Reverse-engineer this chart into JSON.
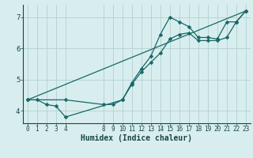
{
  "xlabel": "Humidex (Indice chaleur)",
  "bg_color": "#d8eeee",
  "grid_color": "#b8d4d4",
  "line_color": "#1a6666",
  "ylim": [
    3.6,
    7.4
  ],
  "xlim": [
    -0.5,
    23.5
  ],
  "yticks": [
    4,
    5,
    6,
    7
  ],
  "xticks": [
    0,
    1,
    2,
    3,
    4,
    8,
    9,
    10,
    11,
    12,
    13,
    14,
    15,
    16,
    17,
    18,
    19,
    20,
    21,
    22,
    23
  ],
  "line1_x": [
    0,
    1,
    2,
    3,
    4,
    10,
    11,
    12,
    13,
    14,
    15,
    16,
    17,
    18,
    19,
    20,
    21,
    22,
    23
  ],
  "line1_y": [
    4.35,
    4.35,
    4.2,
    4.15,
    3.8,
    4.35,
    4.9,
    5.35,
    5.75,
    6.45,
    7.0,
    6.85,
    6.7,
    6.35,
    6.35,
    6.3,
    6.85,
    6.85,
    7.2
  ],
  "line2_x": [
    0,
    4,
    8,
    9,
    10,
    11,
    12,
    13,
    14,
    15,
    16,
    17,
    18,
    19,
    20,
    21,
    22,
    23
  ],
  "line2_y": [
    4.35,
    4.35,
    4.2,
    4.2,
    4.35,
    4.85,
    5.25,
    5.55,
    5.85,
    6.3,
    6.45,
    6.5,
    6.25,
    6.25,
    6.25,
    6.35,
    6.85,
    7.2
  ],
  "line3_x": [
    0,
    23
  ],
  "line3_y": [
    4.35,
    7.2
  ]
}
